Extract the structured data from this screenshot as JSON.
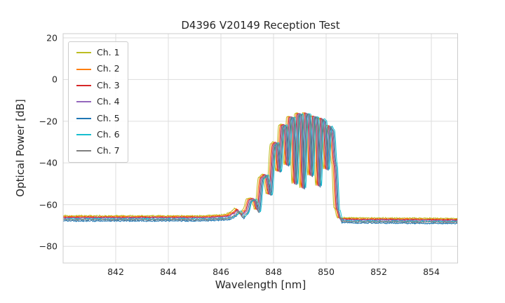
{
  "chart_data": {
    "type": "line",
    "title": "D4396 V20149 Reception Test",
    "xlabel": "Wavelength [nm]",
    "ylabel": "Optical Power [dB]",
    "xlim": [
      840,
      855
    ],
    "ylim": [
      -88,
      22
    ],
    "xticks": [
      842,
      844,
      846,
      848,
      850,
      852,
      854
    ],
    "xtick_labels": [
      "842",
      "844",
      "846",
      "848",
      "850",
      "852",
      "854"
    ],
    "yticks": [
      20,
      0,
      -20,
      -40,
      -60,
      -80
    ],
    "ytick_labels": [
      "20",
      "0",
      "−20",
      "−40",
      "−60",
      "−80"
    ],
    "grid": true,
    "legend_position": "upper-left",
    "noise_db": 0.45,
    "series": [
      {
        "name": "Ch. 1",
        "color": "#bcbd22",
        "xshift": -0.12,
        "yoffset": 0.6
      },
      {
        "name": "Ch. 2",
        "color": "#ff7f0e",
        "xshift": -0.07,
        "yoffset": 0.2
      },
      {
        "name": "Ch. 3",
        "color": "#d62728",
        "xshift": -0.03,
        "yoffset": -0.1
      },
      {
        "name": "Ch. 4",
        "color": "#9467bd",
        "xshift": 0.0,
        "yoffset": -0.4
      },
      {
        "name": "Ch. 5",
        "color": "#1f77b4",
        "xshift": 0.06,
        "yoffset": -1.8
      },
      {
        "name": "Ch. 6",
        "color": "#17becf",
        "xshift": 0.1,
        "yoffset": -0.9
      },
      {
        "name": "Ch. 7",
        "color": "#7f7f7f",
        "xshift": 0.03,
        "yoffset": -1.2
      }
    ],
    "base_profile_nm_db": [
      [
        840.0,
        -66.0
      ],
      [
        845.3,
        -66.0
      ],
      [
        846.05,
        -65.6
      ],
      [
        846.3,
        -65.2
      ],
      [
        846.5,
        -64.0
      ],
      [
        846.65,
        -62.3
      ],
      [
        846.8,
        -64.8
      ],
      [
        846.95,
        -63.0
      ],
      [
        847.1,
        -57.5
      ],
      [
        847.25,
        -57.0
      ],
      [
        847.4,
        -62.5
      ],
      [
        847.55,
        -47.0
      ],
      [
        847.7,
        -45.5
      ],
      [
        847.85,
        -55.0
      ],
      [
        848.0,
        -31.0
      ],
      [
        848.1,
        -30.0
      ],
      [
        848.2,
        -44.0
      ],
      [
        848.32,
        -22.0
      ],
      [
        848.42,
        -21.5
      ],
      [
        848.52,
        -41.0
      ],
      [
        848.62,
        -18.0
      ],
      [
        848.72,
        -17.8
      ],
      [
        848.82,
        -50.0
      ],
      [
        848.92,
        -16.5
      ],
      [
        849.02,
        -16.2
      ],
      [
        849.12,
        -52.0
      ],
      [
        849.22,
        -16.0
      ],
      [
        849.32,
        -16.4
      ],
      [
        849.42,
        -46.0
      ],
      [
        849.52,
        -17.5
      ],
      [
        849.62,
        -17.8
      ],
      [
        849.72,
        -51.0
      ],
      [
        849.82,
        -18.5
      ],
      [
        849.92,
        -19.5
      ],
      [
        850.02,
        -43.0
      ],
      [
        850.12,
        -22.0
      ],
      [
        850.22,
        -24.0
      ],
      [
        850.32,
        -40.0
      ],
      [
        850.42,
        -62.0
      ],
      [
        850.55,
        -66.8
      ],
      [
        851.2,
        -67.0
      ],
      [
        855.1,
        -67.2
      ]
    ]
  },
  "colors": {
    "grid": "#dddddd",
    "spine": "#cccccc",
    "text": "#262626",
    "background": "#ffffff"
  }
}
